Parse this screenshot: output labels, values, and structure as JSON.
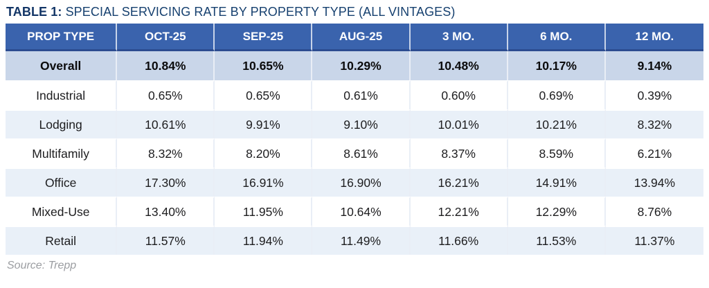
{
  "title": {
    "prefix": "TABLE 1:",
    "rest": " SPECIAL SERVICING RATE BY PROPERTY TYPE (ALL VINTAGES)"
  },
  "chart_data": {
    "type": "table",
    "title": "TABLE 1: SPECIAL SERVICING RATE BY PROPERTY TYPE (ALL VINTAGES)",
    "columns": [
      "PROP TYPE",
      "OCT-25",
      "SEP-25",
      "AUG-25",
      "3 MO.",
      "6 MO.",
      "12 MO."
    ],
    "rows": [
      {
        "label": "Overall",
        "values": [
          "10.84%",
          "10.65%",
          "10.29%",
          "10.48%",
          "10.17%",
          "9.14%"
        ],
        "emphasis": true
      },
      {
        "label": "Industrial",
        "values": [
          "0.65%",
          "0.65%",
          "0.61%",
          "0.60%",
          "0.69%",
          "0.39%"
        ],
        "emphasis": false
      },
      {
        "label": "Lodging",
        "values": [
          "10.61%",
          "9.91%",
          "9.10%",
          "10.01%",
          "10.21%",
          "8.32%"
        ],
        "emphasis": false
      },
      {
        "label": "Multifamily",
        "values": [
          "8.32%",
          "8.20%",
          "8.61%",
          "8.37%",
          "8.59%",
          "6.21%"
        ],
        "emphasis": false
      },
      {
        "label": "Office",
        "values": [
          "17.30%",
          "16.91%",
          "16.90%",
          "16.21%",
          "14.91%",
          "13.94%"
        ],
        "emphasis": false
      },
      {
        "label": "Mixed-Use",
        "values": [
          "13.40%",
          "11.95%",
          "10.64%",
          "12.21%",
          "12.29%",
          "8.76%"
        ],
        "emphasis": false
      },
      {
        "label": "Retail",
        "values": [
          "11.57%",
          "11.94%",
          "11.49%",
          "11.66%",
          "11.53%",
          "11.37%"
        ],
        "emphasis": false
      }
    ],
    "source": "Source: Trepp",
    "layout": {
      "header_position": "top",
      "grid": "subtle white/light-blue cell separators",
      "row_striping": "Overall row highlighted steel-blue bold; remaining rows alternate white and pale blue"
    }
  },
  "colors": {
    "header_bg": "#3A63AD",
    "header_text": "#FFFFFF",
    "header_underline": "#2C4C90",
    "title_text": "#16406F",
    "overall_row_bg": "#C9D6E9",
    "alt_row_bg": "#E9F0F8",
    "white_row_bg": "#FFFFFF",
    "body_text": "#1D1D1F",
    "source_text": "#9B9DA1"
  }
}
